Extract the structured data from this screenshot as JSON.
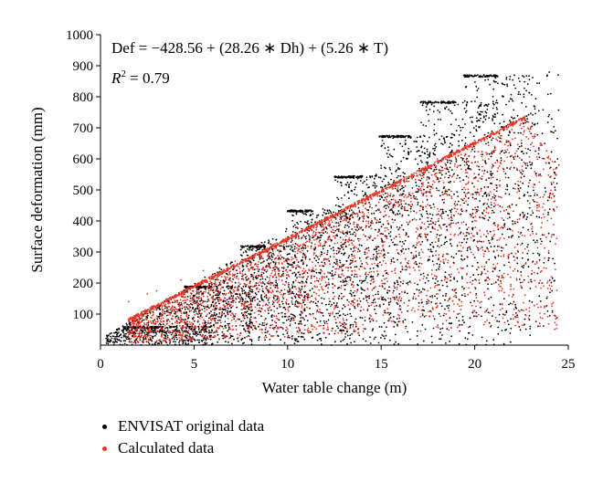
{
  "chart_data": {
    "type": "scatter",
    "title": "",
    "xlabel": "Water table change (m)",
    "ylabel": "Surface deformation (mm)",
    "xlim": [
      0,
      25
    ],
    "ylim": [
      0,
      1000
    ],
    "x_ticks": [
      "0",
      "5",
      "10",
      "15",
      "20",
      "25"
    ],
    "y_ticks": [
      "100",
      "200",
      "300",
      "400",
      "500",
      "600",
      "700",
      "800",
      "900",
      "1000"
    ],
    "grid": false,
    "legend_position": "bottom-left",
    "annotations": {
      "equation": "Def = −428.56 + (28.26 ∗ Dh) + (5.26 ∗ T)",
      "r2_prefix": "R",
      "r2_sup": "2",
      "r2_value": " = 0.79"
    },
    "series": [
      {
        "name": "ENVISAT original data",
        "color": "#000000",
        "description": "dense point cloud, steps at ~60,190,320,435,545,675,785,870 mm",
        "points": [
          [
            0.5,
            10
          ],
          [
            1.5,
            20
          ],
          [
            2.5,
            40
          ],
          [
            3.2,
            50
          ],
          [
            4.0,
            30
          ],
          [
            4.8,
            180
          ],
          [
            5.3,
            190
          ],
          [
            5.8,
            120
          ],
          [
            6.5,
            60
          ],
          [
            7.8,
            300
          ],
          [
            8.5,
            310
          ],
          [
            9.2,
            200
          ],
          [
            10.2,
            430
          ],
          [
            11.0,
            420
          ],
          [
            11.8,
            300
          ],
          [
            12.8,
            540
          ],
          [
            13.5,
            545
          ],
          [
            14.5,
            400
          ],
          [
            15.5,
            670
          ],
          [
            16.3,
            660
          ],
          [
            17.0,
            500
          ],
          [
            17.5,
            780
          ],
          [
            18.5,
            780
          ],
          [
            19.0,
            600
          ],
          [
            19.6,
            870
          ],
          [
            20.5,
            870
          ],
          [
            21.5,
            800
          ],
          [
            22.5,
            650
          ],
          [
            23.5,
            550
          ],
          [
            24.3,
            500
          ]
        ]
      },
      {
        "name": "Calculated data",
        "color": "#ee3322",
        "description": "regression predictions, upper edge following 30.8*Dh + 35",
        "points": [
          [
            1.5,
            140
          ],
          [
            2.5,
            165
          ],
          [
            3.0,
            175
          ],
          [
            4.3,
            210
          ],
          [
            5.5,
            240
          ],
          [
            7.2,
            270
          ],
          [
            8.5,
            320
          ],
          [
            10.5,
            380
          ],
          [
            12.0,
            410
          ],
          [
            14.0,
            460
          ],
          [
            16.0,
            530
          ],
          [
            18.0,
            600
          ],
          [
            20.0,
            660
          ],
          [
            22.5,
            730
          ],
          [
            23.5,
            650
          ],
          [
            24.5,
            580
          ]
        ]
      }
    ]
  }
}
